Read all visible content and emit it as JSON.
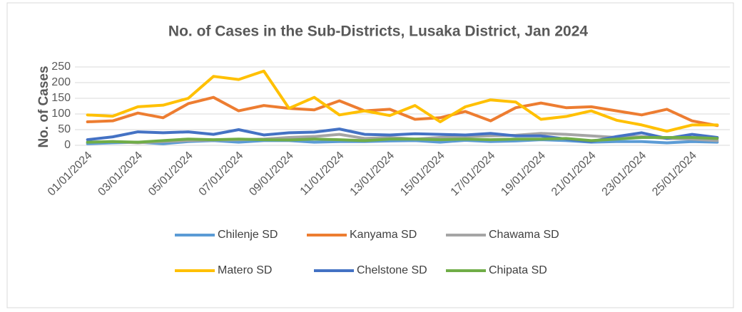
{
  "chart_data": {
    "type": "line",
    "title": "No. of Cases in the Sub-Districts, Lusaka District, Jan 2024",
    "y_label": "No. of Cases",
    "categories": [
      "01/01/2024",
      null,
      "03/01/2024",
      null,
      "05/01/2024",
      null,
      "07/01/2024",
      null,
      "09/01/2024",
      null,
      "11/01/2024",
      null,
      "13/01/2024",
      null,
      "15/01/2024",
      null,
      "17/01/2024",
      null,
      "19/01/2024",
      null,
      "21/01/2024",
      null,
      "23/01/2024",
      null,
      "25/01/2024",
      null
    ],
    "ylim": [
      0,
      250
    ],
    "yticks": [
      0,
      50,
      100,
      150,
      200,
      250
    ],
    "grid": true,
    "legend": "bottom",
    "series": [
      {
        "name": "Chilenje SD",
        "color": "#5b9bd5",
        "values": [
          5,
          8,
          10,
          5,
          12,
          15,
          10,
          15,
          15,
          10,
          12,
          12,
          14,
          15,
          10,
          16,
          12,
          14,
          18,
          15,
          10,
          12,
          12,
          8,
          12,
          10
        ]
      },
      {
        "name": "Kanyama SD",
        "color": "#ed7d31",
        "values": [
          75,
          78,
          103,
          88,
          133,
          153,
          110,
          127,
          118,
          113,
          142,
          110,
          115,
          83,
          88,
          108,
          78,
          120,
          135,
          120,
          123,
          110,
          97,
          115,
          78,
          63
        ]
      },
      {
        "name": "Chawama SD",
        "color": "#a5a5a5",
        "values": [
          10,
          12,
          8,
          12,
          15,
          17,
          18,
          20,
          25,
          28,
          35,
          22,
          25,
          20,
          25,
          28,
          30,
          32,
          38,
          35,
          30,
          25,
          28,
          22,
          20,
          15
        ]
      },
      {
        "name": "Matero SD",
        "color": "#ffc000",
        "values": [
          97,
          93,
          123,
          128,
          150,
          220,
          210,
          237,
          118,
          153,
          97,
          110,
          95,
          127,
          75,
          123,
          145,
          138,
          83,
          92,
          110,
          80,
          65,
          45,
          65,
          65
        ]
      },
      {
        "name": "Chelstone SD",
        "color": "#4472c4",
        "values": [
          18,
          27,
          43,
          40,
          43,
          35,
          50,
          33,
          40,
          42,
          52,
          35,
          33,
          37,
          35,
          33,
          38,
          30,
          30,
          20,
          12,
          28,
          40,
          22,
          35,
          25
        ]
      },
      {
        "name": "Chipata SD",
        "color": "#70ad47",
        "values": [
          10,
          12,
          10,
          15,
          20,
          18,
          20,
          18,
          17,
          20,
          18,
          15,
          20,
          20,
          18,
          20,
          18,
          20,
          20,
          22,
          15,
          20,
          25,
          25,
          25,
          22
        ]
      }
    ]
  }
}
